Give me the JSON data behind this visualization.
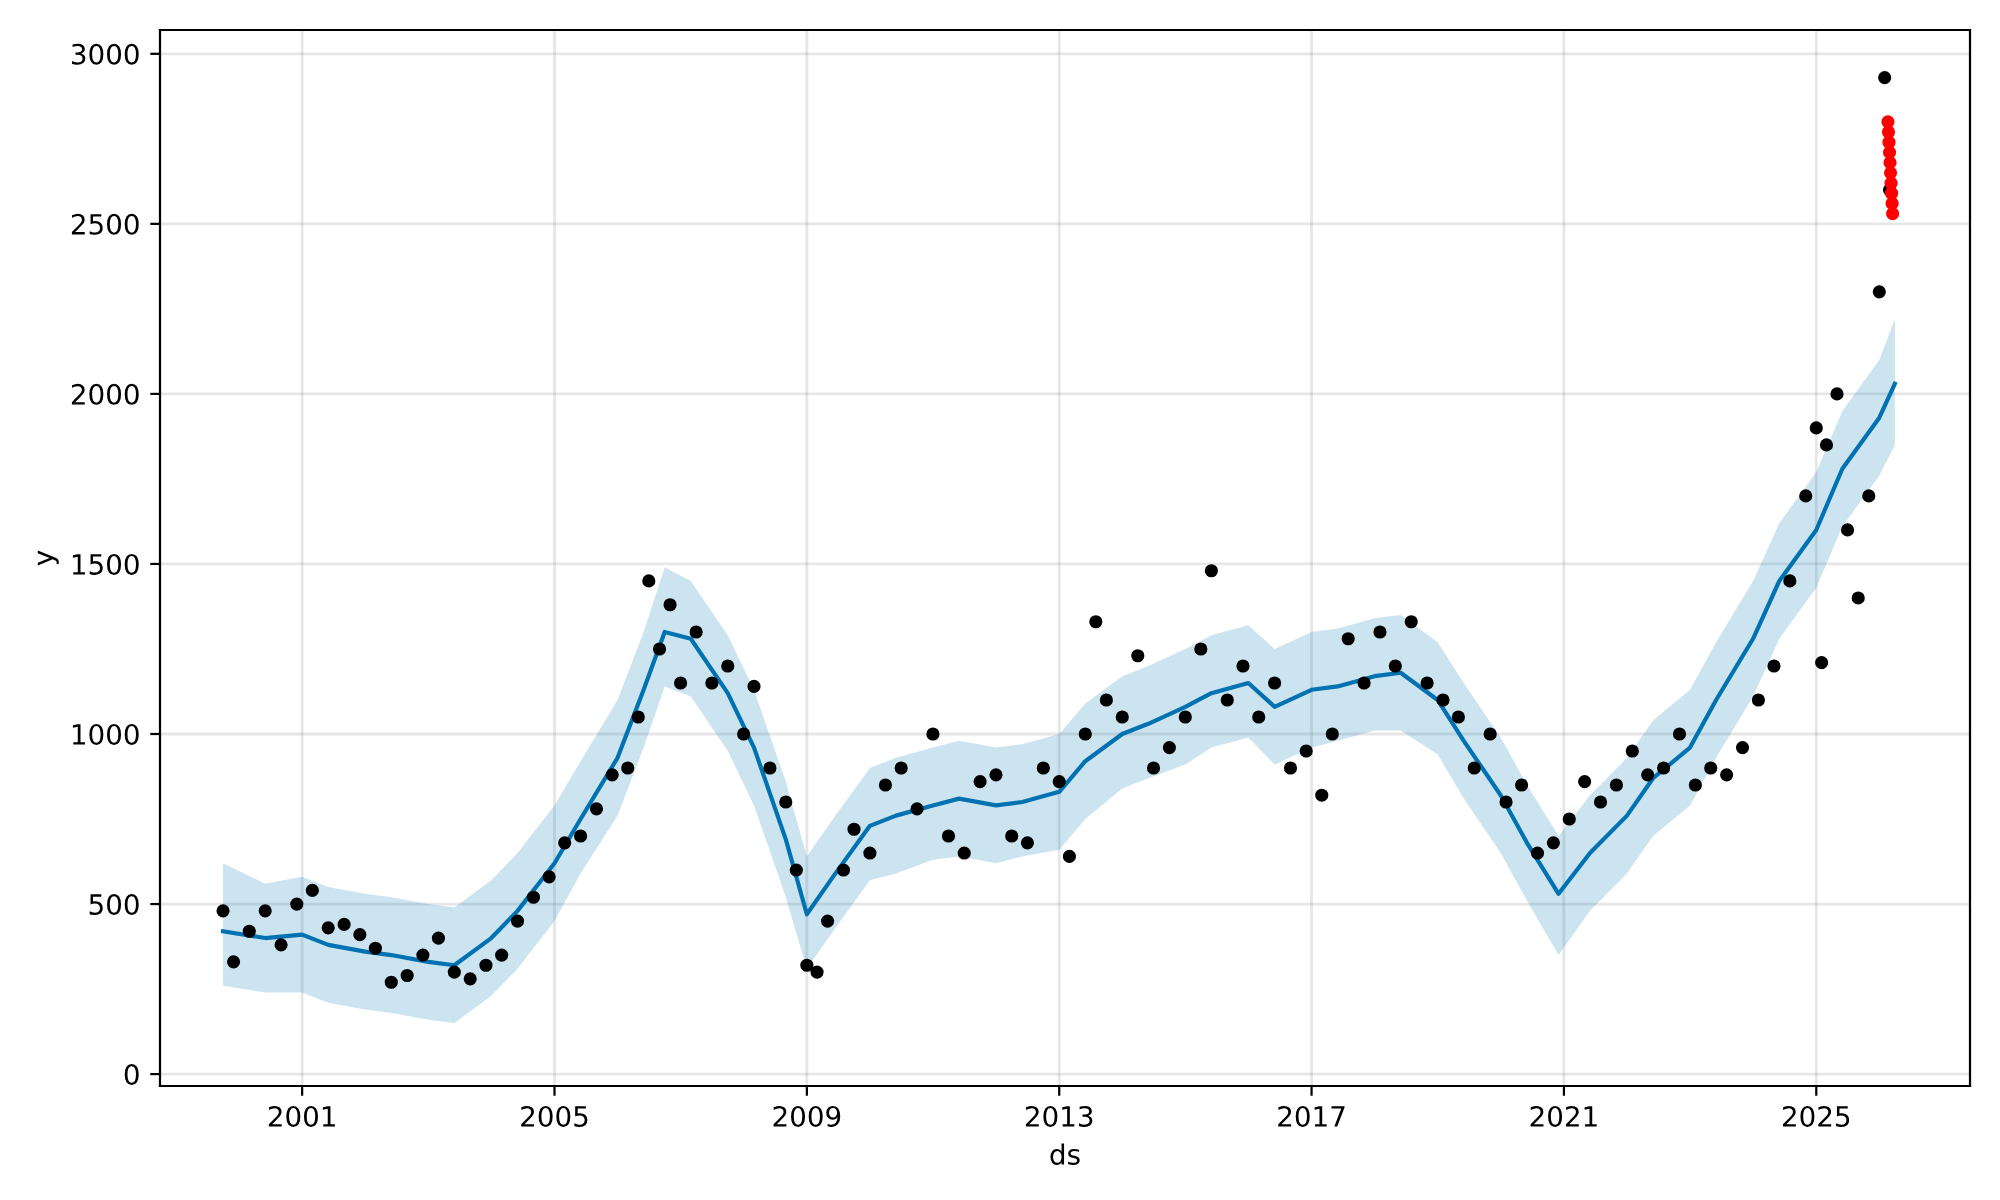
{
  "chart_data": {
    "type": "scatter",
    "xlabel": "ds",
    "ylabel": "y",
    "grid": true,
    "marker": "circle",
    "xlim": [
      "1998-10-01",
      "2027-06-10"
    ],
    "ylim": [
      -35,
      3070
    ],
    "xticks": [
      "2001",
      "2005",
      "2009",
      "2013",
      "2017",
      "2021",
      "2025"
    ],
    "yticks": [
      0,
      500,
      1000,
      1500,
      2000,
      2500,
      3000
    ],
    "series": [
      {
        "type": "line",
        "color": "#0072b2",
        "marker": "none",
        "x": [
          "1999-10",
          "2000-06",
          "2001-01",
          "2001-06",
          "2002-01",
          "2002-06",
          "2003-01",
          "2003-06",
          "2004-01",
          "2004-06",
          "2005-01",
          "2005-06",
          "2006-01",
          "2006-06",
          "2006-10",
          "2007-03",
          "2007-10",
          "2008-03",
          "2008-09",
          "2009-01",
          "2009-06",
          "2010-01",
          "2010-06",
          "2011-01",
          "2011-06",
          "2012-01",
          "2012-06",
          "2013-01",
          "2013-06",
          "2014-01",
          "2014-06",
          "2015-01",
          "2015-06",
          "2016-01",
          "2016-06",
          "2017-01",
          "2017-06",
          "2018-01",
          "2018-06",
          "2019-01",
          "2019-06",
          "2020-01",
          "2020-06",
          "2020-12",
          "2021-06",
          "2022-01",
          "2022-06",
          "2023-01",
          "2023-06",
          "2024-01",
          "2024-06",
          "2025-01",
          "2025-06",
          "2026-01",
          "2026-04"
        ],
        "values": [
          420,
          400,
          410,
          380,
          360,
          350,
          330,
          320,
          400,
          480,
          620,
          750,
          930,
          1130,
          1300,
          1280,
          1120,
          960,
          690,
          470,
          580,
          730,
          760,
          790,
          810,
          790,
          800,
          830,
          920,
          1000,
          1030,
          1080,
          1120,
          1150,
          1080,
          1130,
          1140,
          1170,
          1180,
          1100,
          980,
          820,
          680,
          530,
          650,
          760,
          870,
          960,
          1100,
          1280,
          1450,
          1600,
          1780,
          1930,
          2030
        ],
        "lower": [
          260,
          240,
          240,
          210,
          190,
          180,
          160,
          150,
          230,
          310,
          450,
          590,
          760,
          960,
          1140,
          1110,
          950,
          790,
          520,
          310,
          420,
          570,
          590,
          630,
          640,
          620,
          640,
          660,
          750,
          840,
          870,
          910,
          960,
          990,
          910,
          960,
          980,
          1010,
          1010,
          940,
          810,
          650,
          510,
          350,
          480,
          590,
          700,
          790,
          930,
          1110,
          1280,
          1430,
          1610,
          1760,
          1850
        ],
        "upper": [
          620,
          560,
          580,
          550,
          530,
          520,
          500,
          490,
          570,
          650,
          790,
          920,
          1100,
          1300,
          1490,
          1450,
          1290,
          1130,
          860,
          640,
          750,
          900,
          930,
          960,
          980,
          960,
          970,
          1000,
          1090,
          1170,
          1200,
          1250,
          1290,
          1320,
          1250,
          1300,
          1310,
          1340,
          1350,
          1270,
          1150,
          990,
          850,
          700,
          820,
          930,
          1040,
          1130,
          1270,
          1450,
          1620,
          1770,
          1950,
          2100,
          2220
        ]
      },
      {
        "color": "#000000",
        "x": [
          "1999-10",
          "1999-12",
          "2000-03",
          "2000-06",
          "2000-09",
          "2000-12",
          "2001-03",
          "2001-06",
          "2001-09",
          "2001-12",
          "2002-03",
          "2002-06",
          "2002-09",
          "2002-12",
          "2003-03",
          "2003-06",
          "2003-09",
          "2003-12",
          "2004-03",
          "2004-06",
          "2004-09",
          "2004-12",
          "2005-03",
          "2005-06",
          "2005-09",
          "2005-12",
          "2006-03",
          "2006-05",
          "2006-07",
          "2006-09",
          "2006-11",
          "2007-01",
          "2007-04",
          "2007-07",
          "2007-10",
          "2008-01",
          "2008-03",
          "2008-06",
          "2008-09",
          "2008-11",
          "2009-01",
          "2009-03",
          "2009-05",
          "2009-08",
          "2009-10",
          "2010-01",
          "2010-04",
          "2010-07",
          "2010-10",
          "2011-01",
          "2011-04",
          "2011-07",
          "2011-10",
          "2012-01",
          "2012-04",
          "2012-07",
          "2012-10",
          "2013-01",
          "2013-03",
          "2013-06",
          "2013-08",
          "2013-10",
          "2014-01",
          "2014-04",
          "2014-07",
          "2014-10",
          "2015-01",
          "2015-04",
          "2015-06",
          "2015-09",
          "2015-12",
          "2016-03",
          "2016-06",
          "2016-09",
          "2016-12",
          "2017-03",
          "2017-05",
          "2017-08",
          "2017-11",
          "2018-02",
          "2018-05",
          "2018-08",
          "2018-11",
          "2019-02",
          "2019-05",
          "2019-08",
          "2019-11",
          "2020-02",
          "2020-05",
          "2020-08",
          "2020-11",
          "2021-02",
          "2021-05",
          "2021-08",
          "2021-11",
          "2022-02",
          "2022-05",
          "2022-08",
          "2022-11",
          "2023-02",
          "2023-05",
          "2023-08",
          "2023-11",
          "2024-02",
          "2024-05",
          "2024-08",
          "2024-11",
          "2025-01",
          "2025-02",
          "2025-03",
          "2025-05",
          "2025-07",
          "2025-09",
          "2025-11",
          "2026-01",
          "2026-02",
          "2026-03"
        ],
        "values": [
          480,
          330,
          420,
          480,
          380,
          500,
          540,
          430,
          440,
          410,
          370,
          270,
          290,
          350,
          400,
          300,
          280,
          320,
          350,
          450,
          520,
          580,
          680,
          700,
          780,
          880,
          900,
          1050,
          1450,
          1250,
          1380,
          1150,
          1300,
          1150,
          1200,
          1000,
          1140,
          900,
          800,
          600,
          320,
          300,
          450,
          600,
          720,
          650,
          850,
          900,
          780,
          1000,
          700,
          650,
          860,
          880,
          700,
          680,
          900,
          860,
          640,
          1000,
          1330,
          1100,
          1050,
          1230,
          900,
          960,
          1050,
          1250,
          1480,
          1100,
          1200,
          1050,
          1150,
          900,
          950,
          820,
          1000,
          1280,
          1150,
          1300,
          1200,
          1330,
          1150,
          1100,
          1050,
          900,
          1000,
          800,
          850,
          650,
          680,
          750,
          860,
          800,
          850,
          950,
          880,
          900,
          1000,
          850,
          900,
          880,
          960,
          1100,
          1200,
          1450,
          1700,
          1900,
          1210,
          1850,
          2000,
          1600,
          1400,
          1700,
          2300,
          2930,
          2600
        ]
      },
      {
        "color": "#ff0000",
        "x": [
          "2026-02-20",
          "2026-02-23",
          "2026-02-26",
          "2026-03-01",
          "2026-03-04",
          "2026-03-07",
          "2026-03-10",
          "2026-03-13",
          "2026-03-16",
          "2026-03-19"
        ],
        "values": [
          2800,
          2770,
          2740,
          2710,
          2680,
          2650,
          2620,
          2590,
          2560,
          2530
        ]
      }
    ]
  }
}
